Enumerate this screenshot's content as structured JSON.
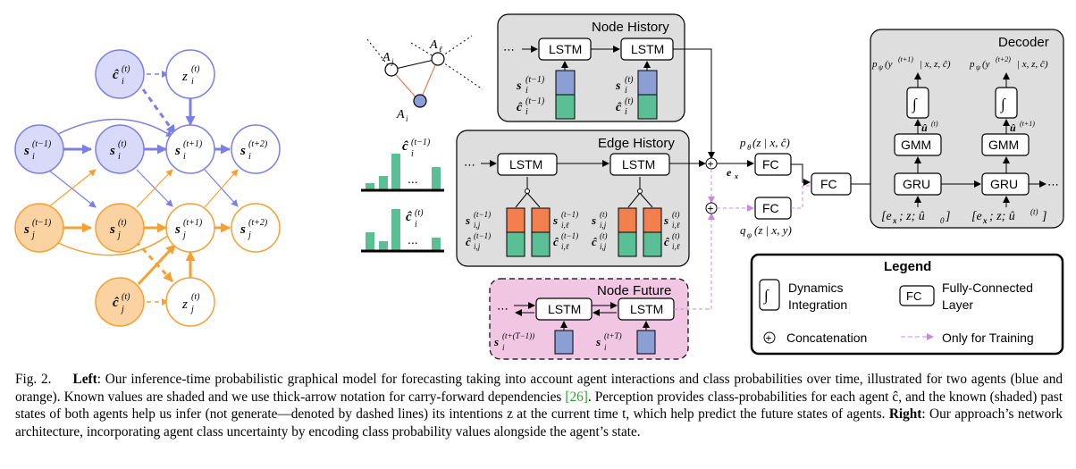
{
  "graph": {
    "nodes": {
      "c_i_t": {
        "label": "ĉ",
        "sub": "i",
        "sup": "(t)"
      },
      "z_i_t": {
        "label": "z",
        "sub": "i",
        "sup": "(t)"
      },
      "s_i_tm1": {
        "label": "s",
        "sub": "i",
        "sup": "(t−1)"
      },
      "s_i_t": {
        "label": "s",
        "sub": "i",
        "sup": "(t)"
      },
      "s_i_tp1": {
        "label": "s",
        "sub": "i",
        "sup": "(t+1)"
      },
      "s_i_tp2": {
        "label": "s",
        "sub": "i",
        "sup": "(t+2)"
      },
      "s_j_tm1": {
        "label": "s",
        "sub": "j",
        "sup": "(t−1)"
      },
      "s_j_t": {
        "label": "s",
        "sub": "j",
        "sup": "(t)"
      },
      "s_j_tp1": {
        "label": "s",
        "sub": "j",
        "sup": "(t+1)"
      },
      "s_j_tp2": {
        "label": "s",
        "sub": "j",
        "sup": "(t+2)"
      },
      "c_j_t": {
        "label": "ĉ",
        "sub": "j",
        "sup": "(t)"
      },
      "z_j_t": {
        "label": "z",
        "sub": "j",
        "sup": "(t)"
      }
    },
    "colors": {
      "blue": "#7b7fe6",
      "blue_fill": "#d9dafa",
      "orange": "#f5a033",
      "orange_fill": "#fbd3a3"
    }
  },
  "agents": {
    "a_j": "A",
    "a_j_sub": "j",
    "a_l": "A",
    "a_l_sub": "ℓ",
    "a_i": "A",
    "a_i_sub": "i"
  },
  "hist": {
    "top_label": "ĉ",
    "top_sup": "(t−1)",
    "top_sub": "i",
    "bottom_label": "ĉ",
    "bottom_sup": "(t)",
    "bottom_sub": "i",
    "dots": "..."
  },
  "panels": {
    "node_history": {
      "title": "Node History",
      "lstm": "LSTM",
      "s_prev": "s",
      "s_prev_sup": "(t−1)",
      "s_prev_sub": "i",
      "c_prev": "ĉ",
      "c_prev_sup": "(t−1)",
      "c_prev_sub": "i",
      "s_cur": "s",
      "s_cur_sup": "(t)",
      "s_cur_sub": "i",
      "c_cur": "ĉ",
      "c_cur_sup": "(t)",
      "c_cur_sub": "i"
    },
    "edge_history": {
      "title": "Edge History",
      "lstm": "LSTM",
      "l1": "s",
      "l1_sup": "(t−1)",
      "l1_sub": "i,j",
      "l2": "ĉ",
      "l2_sup": "(t−1)",
      "l2_sub": "i,j",
      "l3": "s",
      "l3_sup": "(t−1)",
      "l3_sub": "i,ℓ",
      "l4": "ĉ",
      "l4_sup": "(t−1)",
      "l4_sub": "i,ℓ",
      "l5": "s",
      "l5_sup": "(t)",
      "l5_sub": "i,j",
      "l6": "ĉ",
      "l6_sup": "(t)",
      "l6_sub": "i,j",
      "l7": "s",
      "l7_sup": "(t)",
      "l7_sub": "i,ℓ",
      "l8": "ĉ",
      "l8_sup": "(t)",
      "l8_sub": "i,ℓ"
    },
    "node_future": {
      "title": "Node Future",
      "lstm": "LSTM",
      "s1": "s",
      "s1_sup": "(t+(T−1))",
      "s1_sub": "i",
      "s2": "s",
      "s2_sup": "(t+T)",
      "s2_sub": "i"
    },
    "decoder": {
      "title": "Decoder",
      "gru": "GRU",
      "gmm": "GMM",
      "integ": "∫",
      "p1": "p",
      "p1_sub": "ψ",
      "p1_arg": "(y",
      "p1_sup": "(t+1)",
      "p1_rest": " | x, z, ĉ)",
      "p2": "p",
      "p2_sub": "ψ",
      "p2_arg": "(y",
      "p2_sup": "(t+2)",
      "p2_rest": " | x, z, ĉ)",
      "u1": "û",
      "u1_sup": "(t)",
      "u2": "û",
      "u2_sup": "(t+1)",
      "in1": "[e",
      "in1_sub": "x",
      "in1_rest": "; z; û",
      "in1_sub2": "0",
      "in1_end": "]",
      "in2": "[e",
      "in2_sub": "x",
      "in2_rest": "; z; û",
      "in2_sup": "(t)",
      "in2_end": "]"
    }
  },
  "fc": {
    "label": "FC",
    "p_theta": "p",
    "p_theta_sub": "θ",
    "p_theta_rest": "(z | x, ĉ)",
    "q_phi": "q",
    "q_phi_sub": "φ",
    "q_phi_rest": "(z | x, y)",
    "ex": "e",
    "ex_sub": "x"
  },
  "legend": {
    "title": "Legend",
    "dyn": "Dynamics",
    "dyn2": "Integration",
    "fc": "FC",
    "fc_txt": "Fully-Connected",
    "fc_txt2": "Layer",
    "concat": "Concatenation",
    "train": "Only for Training",
    "concat_sym": "+",
    "integ": "∫"
  },
  "caption": {
    "fig": "Fig. 2.",
    "left_b": "Left",
    "p1": ": Our inference-time probabilistic graphical model for forecasting taking into account agent interactions and class probabilities over time, illustrated for two agents (blue and orange). Known values are shaded and we use thick-arrow notation for carry-forward dependencies ",
    "ref": "[26]",
    "p2": ". Perception provides class-probabilities for each agent ĉ, and the known (shaded) past states of both agents help us infer (not generate—denoted by dashed lines) its intentions z at the current time t, which help predict the future states of agents. ",
    "right_b": "Right",
    "p3": ": Our approach’s network architecture, incorporating agent class uncertainty by encoding class probability values alongside the agent’s state."
  }
}
